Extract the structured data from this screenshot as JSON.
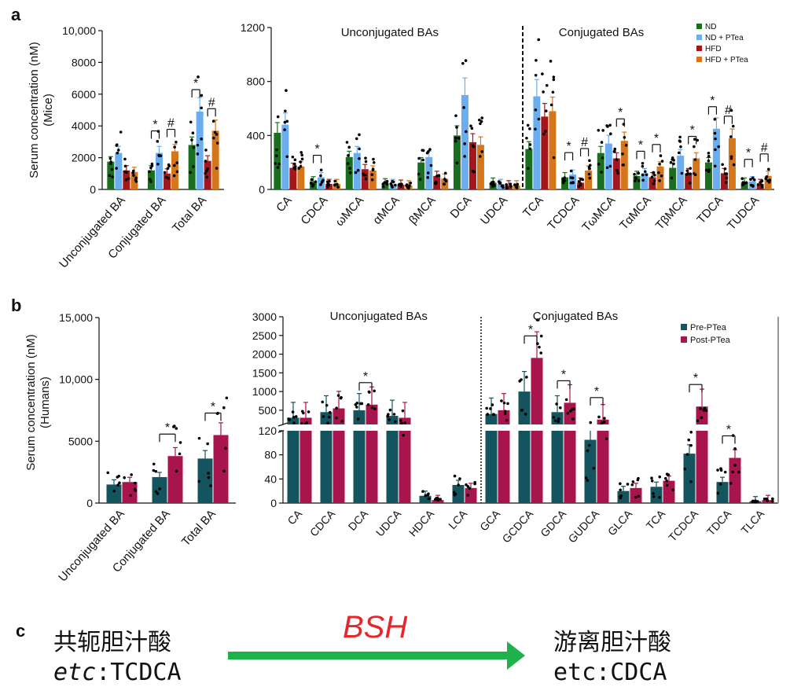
{
  "panel_labels": {
    "a": "a",
    "b": "b",
    "c": "c"
  },
  "colors": {
    "ND": "#1a6e1f",
    "ND + PTea": "#6aaef0",
    "HFD": "#a3171c",
    "HFD + PTea": "#d4761c",
    "Pre-PTea": "#14545e",
    "Post-PTea": "#a8154d",
    "arrow": "#1db34a",
    "bsh": "#e8262a"
  },
  "chart_data": [
    {
      "id": "a_total",
      "type": "bar",
      "ylabel": "Serum concentration (nM)",
      "ylabel2": "(Mice)",
      "ylim": [
        0,
        10000
      ],
      "yticks": [
        0,
        2000,
        4000,
        6000,
        8000,
        10000
      ],
      "ytick_labels": [
        "0",
        "2000",
        "4000",
        "6000",
        "8000",
        "10,000"
      ],
      "categories": [
        "Unconjugated BA",
        "Conjugated BA",
        "Total BA"
      ],
      "series": [
        {
          "name": "ND",
          "values": [
            1750,
            1200,
            2800
          ]
        },
        {
          "name": "ND + PTea",
          "values": [
            2300,
            2300,
            4900
          ]
        },
        {
          "name": "HFD",
          "values": [
            1200,
            1000,
            1800
          ]
        },
        {
          "name": "HFD + PTea",
          "values": [
            1100,
            2400,
            3700
          ]
        }
      ],
      "annotations": [
        {
          "category": 1,
          "pair": [
            0,
            1
          ],
          "symbol": "*"
        },
        {
          "category": 1,
          "pair": [
            2,
            3
          ],
          "symbol": "#"
        },
        {
          "category": 2,
          "pair": [
            0,
            1
          ],
          "symbol": "*"
        },
        {
          "category": 2,
          "pair": [
            2,
            3
          ],
          "symbol": "#"
        }
      ]
    },
    {
      "id": "a_individual",
      "type": "bar",
      "ylim": [
        0,
        1200
      ],
      "yticks": [
        0,
        400,
        800,
        1200
      ],
      "ytick_labels": [
        "0",
        "400",
        "800",
        "1200"
      ],
      "section_labels": [
        "Unconjugated BAs",
        "Conjugated BAs"
      ],
      "divider_after": 6,
      "legend": [
        "ND",
        "ND + PTea",
        "HFD",
        "HFD + PTea"
      ],
      "legend_position": "top-right",
      "categories": [
        "CA",
        "CDCA",
        "ωMCA",
        "αMCA",
        "βMCA",
        "DCA",
        "UDCA",
        "TCA",
        "TCDCA",
        "TωMCA",
        "TαMCA",
        "TβMCA",
        "TDCA",
        "TUDCA"
      ],
      "series": [
        {
          "name": "ND",
          "values": [
            420,
            60,
            240,
            45,
            200,
            400,
            50,
            300,
            90,
            270,
            100,
            160,
            200,
            50
          ]
        },
        {
          "name": "ND + PTea",
          "values": [
            480,
            90,
            270,
            40,
            240,
            700,
            40,
            690,
            110,
            340,
            120,
            250,
            450,
            60
          ]
        },
        {
          "name": "HFD",
          "values": [
            160,
            40,
            150,
            35,
            100,
            350,
            30,
            540,
            50,
            230,
            90,
            120,
            120,
            40
          ]
        },
        {
          "name": "HFD + PTea",
          "values": [
            170,
            40,
            140,
            30,
            80,
            330,
            30,
            580,
            140,
            360,
            170,
            230,
            380,
            100
          ]
        }
      ],
      "annotations": [
        {
          "category": 1,
          "pair": [
            0,
            1
          ],
          "symbol": "*"
        },
        {
          "category": 8,
          "pair": [
            0,
            1
          ],
          "symbol": "*"
        },
        {
          "category": 8,
          "pair": [
            2,
            3
          ],
          "symbol": "#"
        },
        {
          "category": 9,
          "pair": [
            2,
            3
          ],
          "symbol": "*"
        },
        {
          "category": 10,
          "pair": [
            0,
            1
          ],
          "symbol": "*"
        },
        {
          "category": 10,
          "pair": [
            2,
            3
          ],
          "symbol": "*"
        },
        {
          "category": 11,
          "pair": [
            2,
            3
          ],
          "symbol": "*"
        },
        {
          "category": 12,
          "pair": [
            0,
            1
          ],
          "symbol": "*"
        },
        {
          "category": 12,
          "pair": [
            2,
            3
          ],
          "symbol": "#"
        },
        {
          "category": 13,
          "pair": [
            0,
            1
          ],
          "symbol": "*"
        },
        {
          "category": 13,
          "pair": [
            2,
            3
          ],
          "symbol": "#"
        }
      ]
    },
    {
      "id": "b_total",
      "type": "bar",
      "ylabel": "Serum concentration (nM)",
      "ylabel2": "(Humans)",
      "ylim": [
        0,
        15000
      ],
      "yticks": [
        0,
        5000,
        10000,
        15000
      ],
      "ytick_labels": [
        "0",
        "5000",
        "10,000",
        "15,000"
      ],
      "categories": [
        "Unconjugated BA",
        "Conjugated BA",
        "Total BA"
      ],
      "series": [
        {
          "name": "Pre-PTea",
          "values": [
            1500,
            2100,
            3600
          ]
        },
        {
          "name": "Post-PTea",
          "values": [
            1700,
            3800,
            5500
          ]
        }
      ],
      "annotations": [
        {
          "category": 1,
          "pair": [
            0,
            1
          ],
          "symbol": "*"
        },
        {
          "category": 2,
          "pair": [
            0,
            1
          ],
          "symbol": "*"
        }
      ]
    },
    {
      "id": "b_individual",
      "type": "bar",
      "broken_axis": {
        "lower": [
          0,
          120
        ],
        "upper": [
          120,
          3000
        ]
      },
      "yticks_lower": [
        0,
        40,
        80,
        120
      ],
      "yticks_upper": [
        500,
        1000,
        1500,
        2000,
        2500,
        3000
      ],
      "ytick_labels_lower": [
        "0",
        "40",
        "80",
        "120"
      ],
      "ytick_labels_upper": [
        "500",
        "1000",
        "1500",
        "2000",
        "2500",
        "3000"
      ],
      "section_labels": [
        "Unconjugated BAs",
        "Conjugated BAs"
      ],
      "divider_after": 5,
      "legend": [
        "Pre-PTea",
        "Post-PTea"
      ],
      "legend_position": "top-right",
      "categories": [
        "CA",
        "CDCA",
        "DCA",
        "UDCA",
        "HDCA",
        "LCA",
        "GCA",
        "GCDCA",
        "GDCA",
        "GUDCA",
        "GLCA",
        "TCA",
        "TCDCA",
        "TDCA",
        "TLCA"
      ],
      "series": [
        {
          "name": "Pre-PTea",
          "values": [
            300,
            450,
            500,
            350,
            12,
            30,
            400,
            1000,
            450,
            105,
            20,
            27,
            82,
            35,
            3
          ]
        },
        {
          "name": "Post-PTea",
          "values": [
            300,
            550,
            650,
            300,
            5,
            25,
            500,
            1900,
            700,
            250,
            25,
            37,
            600,
            75,
            5
          ]
        }
      ],
      "annotations": [
        {
          "category": 2,
          "pair": [
            0,
            1
          ],
          "symbol": "*"
        },
        {
          "category": 7,
          "pair": [
            0,
            1
          ],
          "symbol": "*"
        },
        {
          "category": 8,
          "pair": [
            0,
            1
          ],
          "symbol": "*"
        },
        {
          "category": 9,
          "pair": [
            0,
            1
          ],
          "symbol": "*"
        },
        {
          "category": 12,
          "pair": [
            0,
            1
          ],
          "symbol": "*"
        },
        {
          "category": 13,
          "pair": [
            0,
            1
          ],
          "symbol": "*"
        }
      ]
    }
  ],
  "panel_c": {
    "left_line1": "共轭胆汁酸",
    "left_prefix": "etc",
    "left_suffix": ":TCDCA",
    "arrow_label": "BSH",
    "right_line1": "游离胆汁酸",
    "right_line2": "etc:CDCA"
  }
}
